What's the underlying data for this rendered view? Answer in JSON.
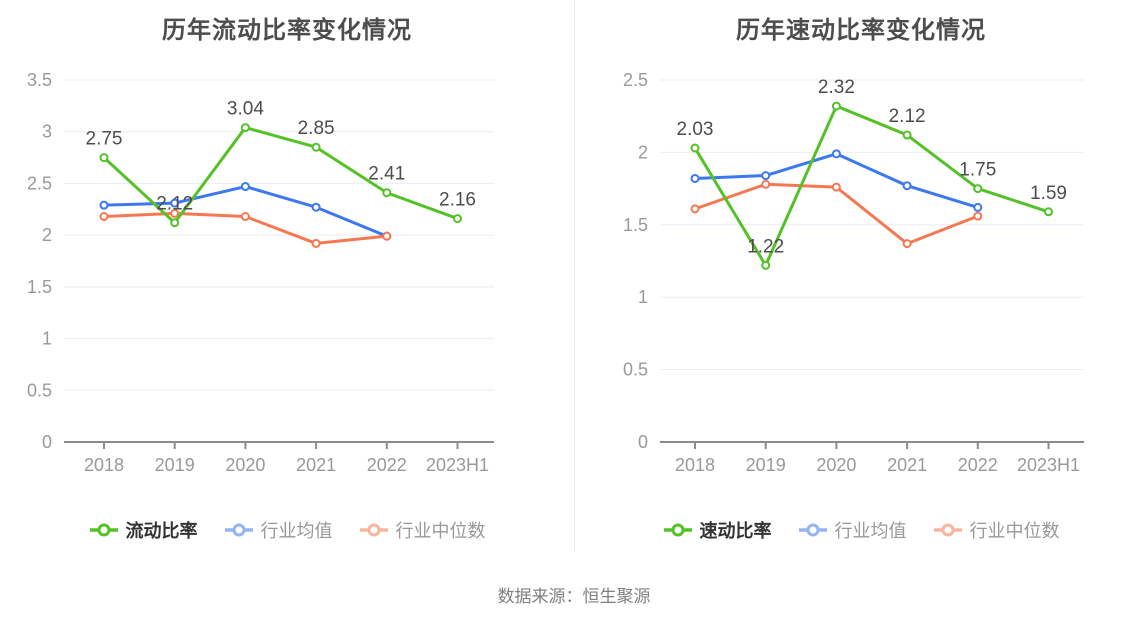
{
  "page": {
    "source_note": "数据来源：恒生聚源"
  },
  "colors": {
    "green": "#54c227",
    "blue": "#3c78f0",
    "orange": "#f57850",
    "title_text": "#4d4d4d",
    "value_label_text": "#4d4d4d",
    "axis_text": "#999999",
    "grid_line": "#e9eef5",
    "axis_line": "#8c8c8c",
    "legend_muted_text": "#999999",
    "divider": "#ececec"
  },
  "chart_data": [
    {
      "type": "line",
      "title": "历年流动比率变化情况",
      "categories": [
        "2018",
        "2019",
        "2020",
        "2021",
        "2022",
        "2023H1"
      ],
      "ylim": [
        0,
        3.5
      ],
      "ytick_step": 0.5,
      "grid": true,
      "legend_position": "bottom",
      "series": [
        {
          "name": "流动比率",
          "key": "current-ratio",
          "color_key": "green",
          "labels_shown": true,
          "values": [
            2.75,
            2.12,
            3.04,
            2.85,
            2.41,
            2.16
          ]
        },
        {
          "name": "行业均值",
          "key": "industry-mean",
          "color_key": "blue",
          "labels_shown": false,
          "values": [
            2.29,
            2.31,
            2.47,
            2.27,
            1.99
          ]
        },
        {
          "name": "行业中位数",
          "key": "industry-median",
          "color_key": "orange",
          "labels_shown": false,
          "values": [
            2.18,
            2.21,
            2.18,
            1.92,
            1.99
          ]
        }
      ]
    },
    {
      "type": "line",
      "title": "历年速动比率变化情况",
      "categories": [
        "2018",
        "2019",
        "2020",
        "2021",
        "2022",
        "2023H1"
      ],
      "ylim": [
        0,
        2.5
      ],
      "ytick_step": 0.5,
      "grid": true,
      "legend_position": "bottom",
      "series": [
        {
          "name": "速动比率",
          "key": "quick-ratio",
          "color_key": "green",
          "labels_shown": true,
          "values": [
            2.03,
            1.22,
            2.32,
            2.12,
            1.75,
            1.59
          ]
        },
        {
          "name": "行业均值",
          "key": "industry-mean",
          "color_key": "blue",
          "labels_shown": false,
          "values": [
            1.82,
            1.84,
            1.99,
            1.77,
            1.62
          ]
        },
        {
          "name": "行业中位数",
          "key": "industry-median",
          "color_key": "orange",
          "labels_shown": false,
          "values": [
            1.61,
            1.78,
            1.76,
            1.37,
            1.56
          ]
        }
      ]
    }
  ]
}
